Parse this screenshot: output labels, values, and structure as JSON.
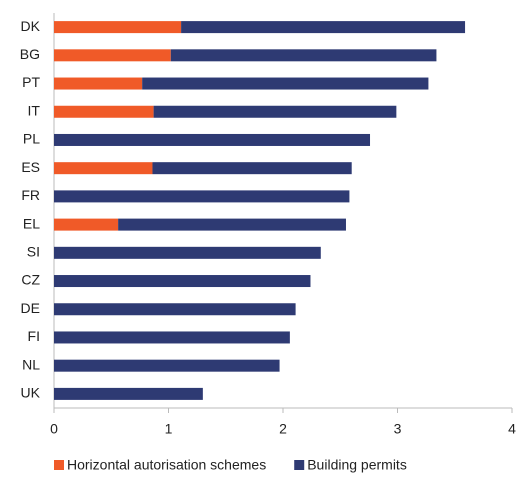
{
  "chart_data": {
    "type": "stacked-bar-horizontal",
    "categories": [
      "DK",
      "BG",
      "PT",
      "IT",
      "PL",
      "ES",
      "FR",
      "EL",
      "SI",
      "CZ",
      "DE",
      "FI",
      "NL",
      "UK"
    ],
    "series": [
      {
        "name": "Horizontal autorisation schemes",
        "color": "#f05a28",
        "values": [
          1.11,
          1.02,
          0.77,
          0.87,
          0,
          0.86,
          0,
          0.56,
          0,
          0,
          0,
          0,
          0,
          0
        ]
      },
      {
        "name": "Building permits",
        "color": "#2e3a73",
        "values": [
          2.48,
          2.32,
          2.5,
          2.12,
          2.76,
          1.74,
          2.58,
          1.99,
          2.33,
          2.24,
          2.11,
          2.06,
          1.97,
          1.3
        ]
      }
    ],
    "xlim": [
      0,
      4
    ],
    "xticks": [
      0,
      1,
      2,
      3,
      4
    ],
    "legend": "bottom"
  }
}
